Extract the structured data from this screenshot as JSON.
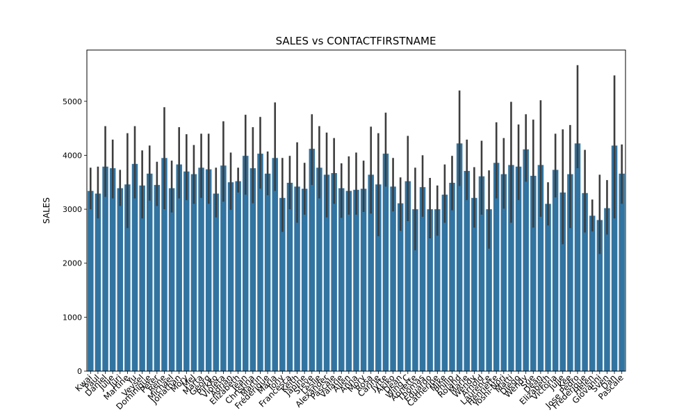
{
  "chart_data": {
    "type": "bar",
    "title": "SALES vs CONTACTFIRSTNAME",
    "xlabel": "",
    "ylabel": "SALES",
    "ylim": [
      0,
      5950
    ],
    "yticks": [
      0,
      1000,
      2000,
      3000,
      4000,
      5000
    ],
    "grid": false,
    "bar_color": "#3274a1",
    "error_color": "#3d3d3d",
    "categories": [
      "Kwai",
      "Paul",
      "Daniel",
      "Julie",
      "Juri",
      "Martine",
      "Yu",
      "Veysel",
      "Dominique",
      "Peter",
      "Rene",
      "Michael",
      "Jonathan",
      "Mory",
      "Mel",
      "Marta",
      "Georg",
      "Pirkko",
      "Violeta",
      "Adrian",
      "Elizabeth",
      "Jean",
      "Christina",
      "Martin",
      "Frédérique",
      "Maria",
      "Tony",
      "Francesca",
      "Keith",
      "Janine",
      "Steve",
      "Leslie",
      "Alexander",
      "Pascale",
      "Valarie",
      "Allen",
      "Anna",
      "Mory",
      "Rosa",
      "Carine",
      "Jytte",
      "Akiko",
      "Dean",
      "Wing C",
      "Annette",
      "Thomas",
      "Eduardo",
      "Catherine",
      "Mike",
      "Philip",
      "Roland",
      "Marie",
      "Wendy",
      "Arnold",
      "Laurence",
      "Henriette",
      "Yoshi-Nori",
      "Matti",
      "Diego",
      "Wendy",
      "Sue",
      "Dean",
      "Elizabeth",
      "Victoria",
      "Julie",
      "Kee",
      "Jose Pedro",
      "Frederique",
      "Helen",
      "Giovanni",
      "Sven",
      "Dan",
      "Pascale"
    ],
    "values": [
      3340,
      3290,
      3790,
      3760,
      3390,
      3460,
      3840,
      3440,
      3660,
      3450,
      3950,
      3390,
      3830,
      3700,
      3650,
      3770,
      3740,
      3290,
      3810,
      3500,
      3520,
      3990,
      3760,
      4030,
      3660,
      3950,
      3210,
      3490,
      3420,
      3380,
      4120,
      3770,
      3640,
      3670,
      3390,
      3340,
      3360,
      3380,
      3640,
      3460,
      4030,
      3420,
      3110,
      3520,
      3000,
      3410,
      3000,
      3000,
      3270,
      3490,
      4220,
      3710,
      3210,
      3610,
      3000,
      3860,
      3650,
      3820,
      3790,
      4110,
      3620,
      3820,
      3100,
      3730,
      3310,
      3650,
      4220,
      3300,
      2880,
      2800,
      3020,
      4180,
      3660
    ],
    "error_low": [
      3000,
      2830,
      3230,
      3200,
      3060,
      2650,
      3200,
      2830,
      3160,
      3060,
      3000,
      2940,
      3200,
      3170,
      3100,
      3210,
      3100,
      2850,
      3140,
      2990,
      3310,
      3270,
      3110,
      3380,
      3260,
      3340,
      2580,
      3000,
      2750,
      2900,
      3450,
      3200,
      2850,
      3100,
      2840,
      2900,
      2900,
      2950,
      2920,
      2500,
      3420,
      2960,
      2600,
      2780,
      2240,
      2860,
      2460,
      2510,
      2750,
      2980,
      3430,
      3170,
      2660,
      2900,
      2270,
      3200,
      3010,
      2750,
      3170,
      3510,
      2660,
      2860,
      2700,
      3220,
      2350,
      2650,
      3760,
      2570,
      2590,
      2170,
      2530,
      2830,
      3100
    ],
    "error_high": [
      3770,
      3790,
      4540,
      4290,
      3730,
      4410,
      4540,
      4090,
      4180,
      3880,
      4890,
      3900,
      4520,
      4390,
      4190,
      4400,
      4400,
      3770,
      4630,
      4050,
      3770,
      4750,
      4520,
      4710,
      4070,
      4980,
      3950,
      3990,
      4240,
      3860,
      4760,
      4540,
      4420,
      4320,
      3850,
      3980,
      4050,
      3900,
      4530,
      4410,
      4790,
      3950,
      3590,
      4360,
      3770,
      4000,
      3580,
      3440,
      3830,
      3990,
      5200,
      4290,
      3780,
      4270,
      3720,
      4610,
      4320,
      4990,
      4570,
      4760,
      4660,
      5020,
      3500,
      4400,
      4480,
      4560,
      5670,
      4100,
      3180,
      3640,
      3540,
      5480,
      4200
    ]
  }
}
